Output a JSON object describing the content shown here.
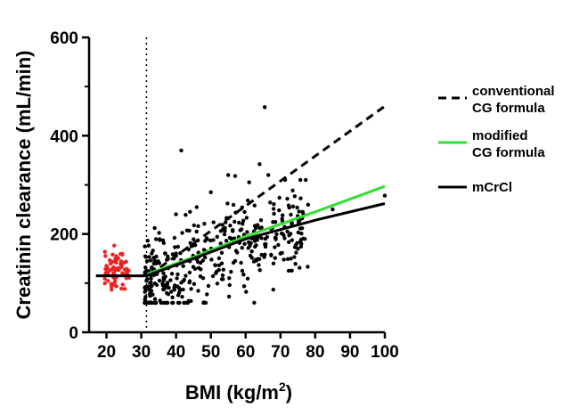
{
  "chart_data": {
    "type": "scatter",
    "title": "",
    "xlabel": "BMI (kg/m²)",
    "xlabel_main": "BMI (kg/m",
    "xlabel_sup": "2",
    "xlabel_close": ")",
    "ylabel": "Creatinin clearance (mL/min)",
    "xlim": [
      15,
      100
    ],
    "ylim": [
      0,
      600
    ],
    "xticks": [
      20,
      30,
      40,
      50,
      60,
      70,
      80,
      90,
      100
    ],
    "yticks": [
      0,
      200,
      400,
      600
    ],
    "yticks_minor": [
      100,
      300,
      500
    ],
    "threshold_x": 31.5,
    "legend_position": "right",
    "series": [
      {
        "name": "conventional CG formula",
        "label_lines": [
          "conventional",
          "CG formula"
        ],
        "style": "dashed",
        "color": "#000000",
        "points": [
          [
            17,
            115
          ],
          [
            32,
            115
          ],
          [
            100,
            460
          ]
        ]
      },
      {
        "name": "modified CG formula",
        "label_lines": [
          "modified",
          "CG formula"
        ],
        "style": "solid",
        "color": "#33dd33",
        "points": [
          [
            31.5,
            118
          ],
          [
            45,
            153
          ],
          [
            60,
            195
          ],
          [
            80,
            245
          ],
          [
            100,
            297
          ]
        ]
      },
      {
        "name": "mCrCl",
        "label_lines": [
          "mCrCl"
        ],
        "style": "solid",
        "color": "#000000",
        "points": [
          [
            17,
            115
          ],
          [
            28,
            115
          ],
          [
            31.5,
            115
          ],
          [
            45,
            150
          ],
          [
            60,
            190
          ],
          [
            80,
            228
          ],
          [
            100,
            262
          ]
        ]
      }
    ],
    "scatter_groups": [
      {
        "color": "#ee2222",
        "x_range": [
          19.5,
          26.5
        ],
        "y_mean": 125,
        "y_sd": 22,
        "count": 75
      },
      {
        "color": "#000000",
        "x_range": [
          31,
          78
        ],
        "y_mean": 150,
        "y_sd": 55,
        "count": 400
      }
    ],
    "outliers": [
      [
        65.5,
        458
      ],
      [
        41.5,
        370
      ],
      [
        64,
        342
      ],
      [
        57,
        318
      ],
      [
        55,
        320
      ],
      [
        61,
        305
      ],
      [
        40,
        240
      ],
      [
        44,
        245
      ],
      [
        66.5,
        320
      ],
      [
        50,
        285
      ],
      [
        77,
        190
      ],
      [
        72,
        205
      ],
      [
        76,
        180
      ],
      [
        75,
        170
      ],
      [
        73,
        150
      ],
      [
        70,
        160
      ],
      [
        71,
        148
      ],
      [
        68,
        140
      ],
      [
        100,
        278
      ],
      [
        85,
        250
      ]
    ]
  }
}
